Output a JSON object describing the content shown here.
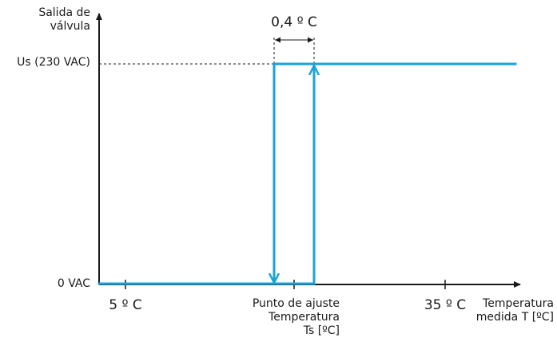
{
  "y_axis": {
    "title_line1": "Salida de",
    "title_line2": "válvula",
    "tick_high": "Us (230 VAC)",
    "tick_low": "0 VAC"
  },
  "x_axis": {
    "title_line1": "Temperatura",
    "title_line2": "medida T [ºC]",
    "tick_left": "5 º C",
    "tick_right": "35 º C",
    "setpoint_line1": "Punto de ajuste",
    "setpoint_line2": "Temperatura",
    "setpoint_line3": "Ts [ºC]"
  },
  "hysteresis": {
    "label": "0,4 º C"
  },
  "colors": {
    "signal": "#1aa3d9",
    "axis": "#1a1a1a"
  }
}
